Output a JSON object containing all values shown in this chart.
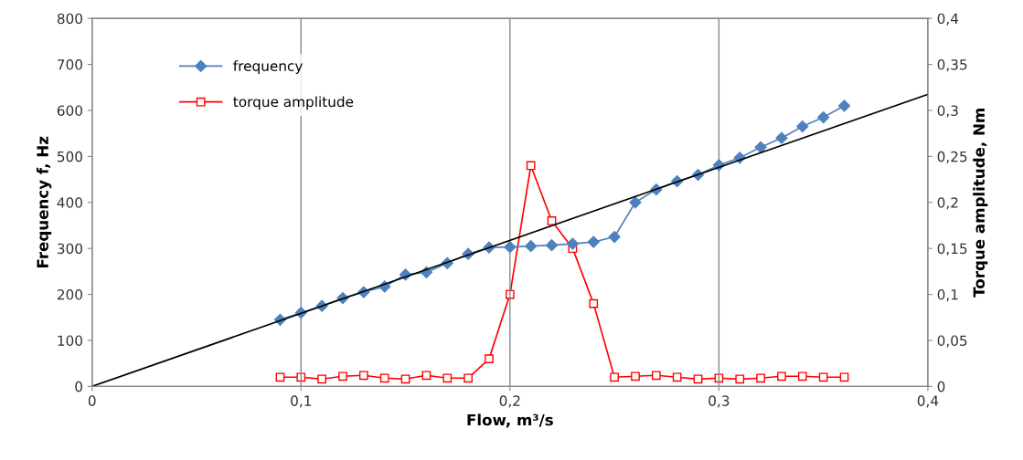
{
  "chart_data": {
    "type": "line",
    "xlabel": "Flow, m³/s",
    "ylabel": "Frequency f, Hz",
    "y2label": "Torque amplitude, Nm",
    "xlim": [
      0,
      0.4
    ],
    "xticks": [
      0,
      {
        "value": 0.1,
        "label": "0,1"
      },
      {
        "value": 0.2,
        "label": "0,2"
      },
      {
        "value": 0.3,
        "label": "0,3"
      },
      {
        "value": 0.4,
        "label": "0,4"
      }
    ],
    "ylim": [
      0,
      800
    ],
    "yticks": [
      0,
      100,
      200,
      300,
      400,
      500,
      600,
      700,
      800
    ],
    "y2lim": [
      0,
      0.4
    ],
    "y2ticks": [
      0,
      {
        "value": 0.05,
        "label": "0,05"
      },
      {
        "value": 0.1,
        "label": "0,1"
      },
      {
        "value": 0.15,
        "label": "0,15"
      },
      {
        "value": 0.2,
        "label": "0,2"
      },
      {
        "value": 0.25,
        "label": "0,25"
      },
      {
        "value": 0.3,
        "label": "0,3"
      },
      {
        "value": 0.35,
        "label": "0,35"
      },
      {
        "value": 0.4,
        "label": "0,4"
      }
    ],
    "grid": "x",
    "legend": "top left",
    "series": [
      {
        "name": "frequency",
        "color": "#4f81bd",
        "marker": "diamond",
        "x": [
          0.09,
          0.1,
          0.11,
          0.12,
          0.13,
          0.14,
          0.15,
          0.16,
          0.17,
          0.18,
          0.19,
          0.2,
          0.21,
          0.22,
          0.23,
          0.24,
          0.25,
          0.26,
          0.27,
          0.28,
          0.29,
          0.3,
          0.31,
          0.32,
          0.33,
          0.34,
          0.35,
          0.36
        ],
        "values": [
          145,
          160,
          175,
          192,
          205,
          217,
          243,
          248,
          268,
          288,
          302,
          303,
          305,
          307,
          310,
          314,
          325,
          400,
          428,
          446,
          460,
          481,
          497,
          520,
          540,
          565,
          585,
          610
        ]
      },
      {
        "name": "torque amplitude",
        "color": "#ff0000",
        "marker": "square",
        "axis": "y2",
        "x": [
          0.09,
          0.1,
          0.11,
          0.12,
          0.13,
          0.14,
          0.15,
          0.16,
          0.17,
          0.18,
          0.19,
          0.2,
          0.21,
          0.22,
          0.23,
          0.24,
          0.25,
          0.26,
          0.27,
          0.28,
          0.29,
          0.3,
          0.31,
          0.32,
          0.33,
          0.34,
          0.35,
          0.36
        ],
        "values": [
          0.01,
          0.01,
          0.008,
          0.011,
          0.012,
          0.009,
          0.008,
          0.012,
          0.009,
          0.009,
          0.03,
          0.1,
          0.24,
          0.18,
          0.15,
          0.09,
          0.01,
          0.011,
          0.012,
          0.01,
          0.008,
          0.009,
          0.008,
          0.009,
          0.011,
          0.011,
          0.01,
          0.01
        ]
      },
      {
        "color": "#000000",
        "marker": "none",
        "x": [
          0,
          0.4
        ],
        "values": [
          0,
          635
        ]
      }
    ]
  }
}
